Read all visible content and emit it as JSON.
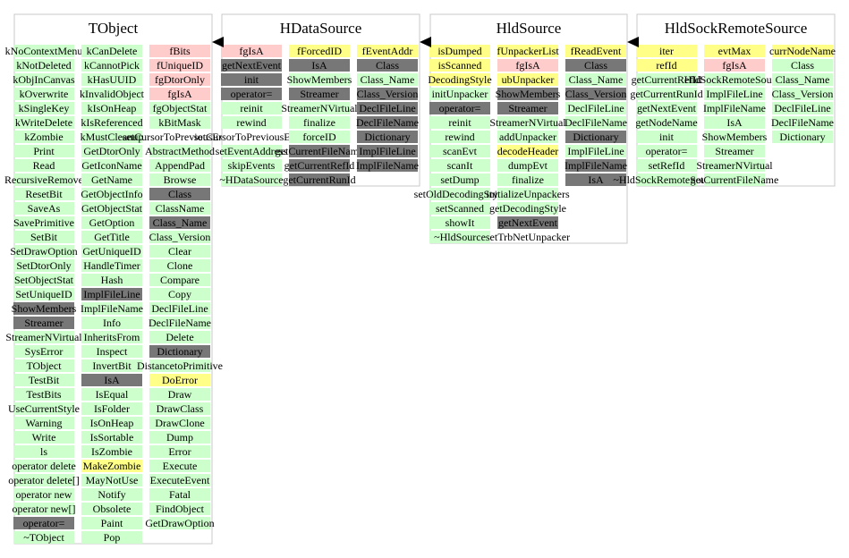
{
  "colors": {
    "public": "#ccffcc",
    "protected": "#ffcccc",
    "private": "#ffff88",
    "inherited": "#777777",
    "plain": "#ffffff"
  },
  "classes": [
    {
      "name": "TObject",
      "columns": [
        [
          {
            "t": "kNoContextMenu",
            "k": "public"
          },
          {
            "t": "kNotDeleted",
            "k": "public"
          },
          {
            "t": "kObjInCanvas",
            "k": "public"
          },
          {
            "t": "kOverwrite",
            "k": "public"
          },
          {
            "t": "kSingleKey",
            "k": "public"
          },
          {
            "t": "kWriteDelete",
            "k": "public"
          },
          {
            "t": "kZombie",
            "k": "public"
          },
          {
            "t": "Print",
            "k": "public"
          },
          {
            "t": "Read",
            "k": "public"
          },
          {
            "t": "RecursiveRemove",
            "k": "public"
          },
          {
            "t": "ResetBit",
            "k": "public"
          },
          {
            "t": "SaveAs",
            "k": "public"
          },
          {
            "t": "SavePrimitive",
            "k": "public"
          },
          {
            "t": "SetBit",
            "k": "public"
          },
          {
            "t": "SetDrawOption",
            "k": "public"
          },
          {
            "t": "SetDtorOnly",
            "k": "public"
          },
          {
            "t": "SetObjectStat",
            "k": "public"
          },
          {
            "t": "SetUniqueID",
            "k": "public"
          },
          {
            "t": "ShowMembers",
            "k": "inherited"
          },
          {
            "t": "Streamer",
            "k": "inherited"
          },
          {
            "t": "StreamerNVirtual",
            "k": "public"
          },
          {
            "t": "SysError",
            "k": "public"
          },
          {
            "t": "TObject",
            "k": "public"
          },
          {
            "t": "TestBit",
            "k": "public"
          },
          {
            "t": "TestBits",
            "k": "public"
          },
          {
            "t": "UseCurrentStyle",
            "k": "public"
          },
          {
            "t": "Warning",
            "k": "public"
          },
          {
            "t": "Write",
            "k": "public"
          },
          {
            "t": "ls",
            "k": "public"
          },
          {
            "t": "operator delete",
            "k": "public"
          },
          {
            "t": "operator delete[]",
            "k": "public"
          },
          {
            "t": "operator new",
            "k": "public"
          },
          {
            "t": "operator new[]",
            "k": "public"
          },
          {
            "t": "operator=",
            "k": "inherited"
          },
          {
            "t": "~TObject",
            "k": "public"
          }
        ],
        [
          {
            "t": "kCanDelete",
            "k": "public"
          },
          {
            "t": "kCannotPick",
            "k": "public"
          },
          {
            "t": "kHasUUID",
            "k": "public"
          },
          {
            "t": "kInvalidObject",
            "k": "public"
          },
          {
            "t": "kIsOnHeap",
            "k": "public"
          },
          {
            "t": "kIsReferenced",
            "k": "public"
          },
          {
            "t": "kMustCleanup",
            "k": "public"
          },
          {
            "t": "GetDtorOnly",
            "k": "public"
          },
          {
            "t": "GetIconName",
            "k": "public"
          },
          {
            "t": "GetName",
            "k": "public"
          },
          {
            "t": "GetObjectInfo",
            "k": "public"
          },
          {
            "t": "GetObjectStat",
            "k": "public"
          },
          {
            "t": "GetOption",
            "k": "public"
          },
          {
            "t": "GetTitle",
            "k": "public"
          },
          {
            "t": "GetUniqueID",
            "k": "public"
          },
          {
            "t": "HandleTimer",
            "k": "public"
          },
          {
            "t": "Hash",
            "k": "public"
          },
          {
            "t": "ImplFileLine",
            "k": "inherited"
          },
          {
            "t": "ImplFileName",
            "k": "public"
          },
          {
            "t": "Info",
            "k": "public"
          },
          {
            "t": "InheritsFrom",
            "k": "public"
          },
          {
            "t": "Inspect",
            "k": "public"
          },
          {
            "t": "InvertBit",
            "k": "public"
          },
          {
            "t": "IsA",
            "k": "inherited"
          },
          {
            "t": "IsEqual",
            "k": "public"
          },
          {
            "t": "IsFolder",
            "k": "public"
          },
          {
            "t": "IsOnHeap",
            "k": "public"
          },
          {
            "t": "IsSortable",
            "k": "public"
          },
          {
            "t": "IsZombie",
            "k": "public"
          },
          {
            "t": "MakeZombie",
            "k": "private"
          },
          {
            "t": "MayNotUse",
            "k": "public"
          },
          {
            "t": "Notify",
            "k": "public"
          },
          {
            "t": "Obsolete",
            "k": "public"
          },
          {
            "t": "Paint",
            "k": "public"
          },
          {
            "t": "Pop",
            "k": "public"
          }
        ],
        [
          {
            "t": "fBits",
            "k": "protected"
          },
          {
            "t": "fUniqueID",
            "k": "protected"
          },
          {
            "t": "fgDtorOnly",
            "k": "protected"
          },
          {
            "t": "fgIsA",
            "k": "protected"
          },
          {
            "t": "fgObjectStat",
            "k": "public"
          },
          {
            "t": "kBitMask",
            "k": "public"
          },
          {
            "t": "setCursorToPreviousEvent",
            "k": "plain"
          },
          {
            "t": "AbstractMethod",
            "k": "public"
          },
          {
            "t": "AppendPad",
            "k": "public"
          },
          {
            "t": "Browse",
            "k": "public"
          },
          {
            "t": "Class",
            "k": "inherited"
          },
          {
            "t": "ClassName",
            "k": "public"
          },
          {
            "t": "Class_Name",
            "k": "inherited"
          },
          {
            "t": "Class_Version",
            "k": "public"
          },
          {
            "t": "Clear",
            "k": "public"
          },
          {
            "t": "Clone",
            "k": "public"
          },
          {
            "t": "Compare",
            "k": "public"
          },
          {
            "t": "Copy",
            "k": "public"
          },
          {
            "t": "DeclFileLine",
            "k": "public"
          },
          {
            "t": "DeclFileName",
            "k": "public"
          },
          {
            "t": "Delete",
            "k": "public"
          },
          {
            "t": "Dictionary",
            "k": "inherited"
          },
          {
            "t": "DistancetoPrimitive",
            "k": "public"
          },
          {
            "t": "DoError",
            "k": "private"
          },
          {
            "t": "Draw",
            "k": "public"
          },
          {
            "t": "DrawClass",
            "k": "public"
          },
          {
            "t": "DrawClone",
            "k": "public"
          },
          {
            "t": "Dump",
            "k": "public"
          },
          {
            "t": "Error",
            "k": "public"
          },
          {
            "t": "Execute",
            "k": "public"
          },
          {
            "t": "ExecuteEvent",
            "k": "public"
          },
          {
            "t": "Fatal",
            "k": "public"
          },
          {
            "t": "FindObject",
            "k": "public"
          },
          {
            "t": "GetDrawOption",
            "k": "public"
          }
        ]
      ]
    },
    {
      "name": "HDataSource",
      "columns": [
        [
          {
            "t": "fgIsA",
            "k": "protected"
          },
          {
            "t": "getNextEvent",
            "k": "inherited"
          },
          {
            "t": "init",
            "k": "inherited"
          },
          {
            "t": "operator=",
            "k": "inherited"
          },
          {
            "t": "reinit",
            "k": "public"
          },
          {
            "t": "rewind",
            "k": "public"
          },
          {
            "t": "setCursorToPreviousEvent",
            "k": "plain"
          },
          {
            "t": "setEventAddress",
            "k": "public"
          },
          {
            "t": "skipEvents",
            "k": "public"
          },
          {
            "t": "~HDataSource",
            "k": "public"
          }
        ],
        [
          {
            "t": "fForcedID",
            "k": "private"
          },
          {
            "t": "IsA",
            "k": "inherited"
          },
          {
            "t": "ShowMembers",
            "k": "public"
          },
          {
            "t": "Streamer",
            "k": "inherited"
          },
          {
            "t": "StreamerNVirtual",
            "k": "public"
          },
          {
            "t": "finalize",
            "k": "public"
          },
          {
            "t": "forceID",
            "k": "public"
          },
          {
            "t": "getCurrentFileName",
            "k": "inherited"
          },
          {
            "t": "getCurrentRefId",
            "k": "inherited"
          },
          {
            "t": "getCurrentRunId",
            "k": "inherited"
          }
        ],
        [
          {
            "t": "fEventAddr",
            "k": "private"
          },
          {
            "t": "Class",
            "k": "inherited"
          },
          {
            "t": "Class_Name",
            "k": "public"
          },
          {
            "t": "Class_Version",
            "k": "inherited"
          },
          {
            "t": "DeclFileLine",
            "k": "inherited"
          },
          {
            "t": "DeclFileName",
            "k": "inherited"
          },
          {
            "t": "Dictionary",
            "k": "inherited"
          },
          {
            "t": "ImplFileLine",
            "k": "inherited"
          },
          {
            "t": "ImplFileName",
            "k": "inherited"
          }
        ]
      ]
    },
    {
      "name": "HldSource",
      "columns": [
        [
          {
            "t": "isDumped",
            "k": "private"
          },
          {
            "t": "isScanned",
            "k": "private"
          },
          {
            "t": "DecodingStyle",
            "k": "private"
          },
          {
            "t": "initUnpacker",
            "k": "public"
          },
          {
            "t": "operator=",
            "k": "inherited"
          },
          {
            "t": "reinit",
            "k": "public"
          },
          {
            "t": "rewind",
            "k": "public"
          },
          {
            "t": "scanEvt",
            "k": "public"
          },
          {
            "t": "scanIt",
            "k": "public"
          },
          {
            "t": "setDump",
            "k": "public"
          },
          {
            "t": "setOldDecodingStyle",
            "k": "public"
          },
          {
            "t": "setScanned",
            "k": "public"
          },
          {
            "t": "showIt",
            "k": "public"
          },
          {
            "t": "~HldSource",
            "k": "public"
          }
        ],
        [
          {
            "t": "fUnpackerList",
            "k": "private"
          },
          {
            "t": "fgIsA",
            "k": "protected"
          },
          {
            "t": "ubUnpacker",
            "k": "private"
          },
          {
            "t": "ShowMembers",
            "k": "inherited"
          },
          {
            "t": "Streamer",
            "k": "inherited"
          },
          {
            "t": "StreamerNVirtual",
            "k": "public"
          },
          {
            "t": "addUnpacker",
            "k": "public"
          },
          {
            "t": "decodeHeader",
            "k": "private"
          },
          {
            "t": "dumpEvt",
            "k": "public"
          },
          {
            "t": "finalize",
            "k": "public"
          },
          {
            "t": "initializeUnpackers",
            "k": "public"
          },
          {
            "t": "getDecodingStyle",
            "k": "public"
          },
          {
            "t": "getNextEvent",
            "k": "inherited"
          },
          {
            "t": "setTrbNetUnpacker",
            "k": "plain"
          }
        ],
        [
          {
            "t": "fReadEvent",
            "k": "private"
          },
          {
            "t": "Class",
            "k": "inherited"
          },
          {
            "t": "Class_Name",
            "k": "public"
          },
          {
            "t": "Class_Version",
            "k": "inherited"
          },
          {
            "t": "DeclFileLine",
            "k": "public"
          },
          {
            "t": "DeclFileName",
            "k": "public"
          },
          {
            "t": "Dictionary",
            "k": "inherited"
          },
          {
            "t": "ImplFileLine",
            "k": "public"
          },
          {
            "t": "ImplFileName",
            "k": "inherited"
          },
          {
            "t": "IsA",
            "k": "inherited"
          }
        ]
      ]
    },
    {
      "name": "HldSockRemoteSource",
      "columns": [
        [
          {
            "t": "iter",
            "k": "private"
          },
          {
            "t": "refId",
            "k": "private"
          },
          {
            "t": "getCurrentRefId",
            "k": "public"
          },
          {
            "t": "getCurrentRunId",
            "k": "public"
          },
          {
            "t": "getNextEvent",
            "k": "public"
          },
          {
            "t": "getNodeName",
            "k": "public"
          },
          {
            "t": "init",
            "k": "public"
          },
          {
            "t": "operator=",
            "k": "public"
          },
          {
            "t": "setRefId",
            "k": "public"
          },
          {
            "t": "~HldSockRemoteSource",
            "k": "public"
          }
        ],
        [
          {
            "t": "evtMax",
            "k": "private"
          },
          {
            "t": "fgIsA",
            "k": "protected"
          },
          {
            "t": "HldSockRemoteSource",
            "k": "public"
          },
          {
            "t": "ImplFileLine",
            "k": "public"
          },
          {
            "t": "ImplFileName",
            "k": "public"
          },
          {
            "t": "IsA",
            "k": "public"
          },
          {
            "t": "ShowMembers",
            "k": "public"
          },
          {
            "t": "Streamer",
            "k": "public"
          },
          {
            "t": "StreamerNVirtual",
            "k": "public"
          },
          {
            "t": "getCurrentFileName",
            "k": "public"
          }
        ],
        [
          {
            "t": "currNodeName",
            "k": "private"
          },
          {
            "t": "Class",
            "k": "public"
          },
          {
            "t": "Class_Name",
            "k": "public"
          },
          {
            "t": "Class_Version",
            "k": "public"
          },
          {
            "t": "DeclFileLine",
            "k": "public"
          },
          {
            "t": "DeclFileName",
            "k": "public"
          },
          {
            "t": "Dictionary",
            "k": "public"
          }
        ]
      ]
    }
  ]
}
